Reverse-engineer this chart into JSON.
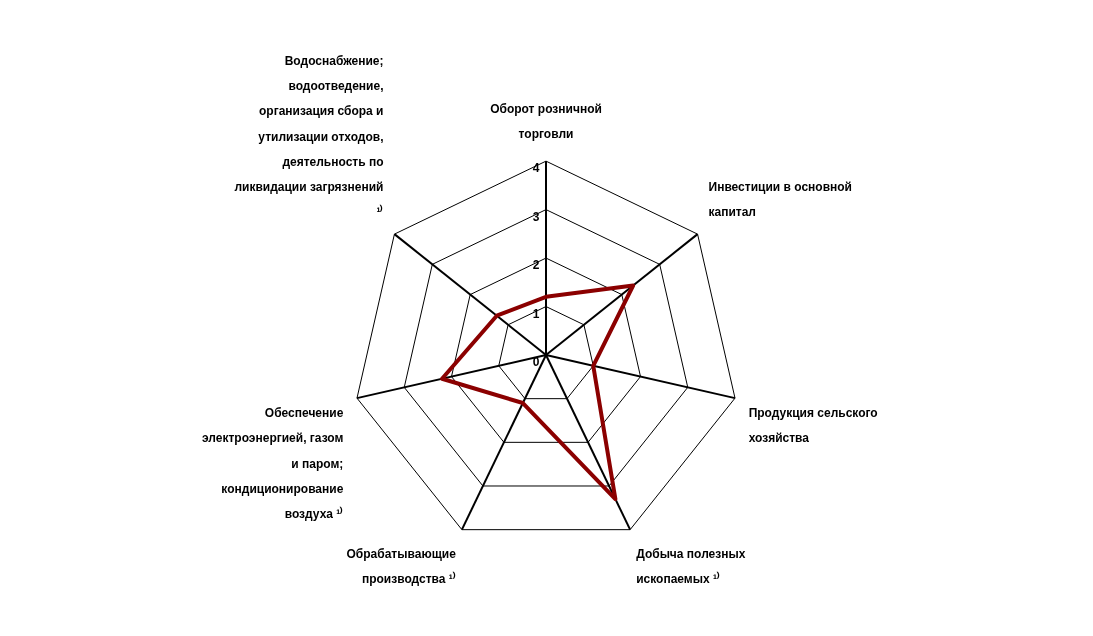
{
  "chart_data": {
    "type": "radar",
    "categories": [
      "Оборот розничной торговли",
      "Инвестиции в основной капитал",
      "Продукция сельского хозяйства",
      "Добыча полезных ископаемых ¹⁾",
      "Обрабатывающие производства ¹⁾",
      "Обеспечение электроэнергией, газом и паром; кондиционирование воздуха ¹⁾",
      "Водоснабжение; водоотведение, организация сбора и утилизации отходов, деятельность по ликвидации загрязнений ¹⁾"
    ],
    "series": [
      {
        "color": "#8b0000",
        "values": [
          1.2,
          2.3,
          1.0,
          3.3,
          1.1,
          2.2,
          1.3
        ]
      }
    ],
    "ylim": [
      0,
      4
    ],
    "yticks": [
      0,
      1,
      2,
      3,
      4
    ],
    "grid": true,
    "marker": "none",
    "legend": false
  }
}
